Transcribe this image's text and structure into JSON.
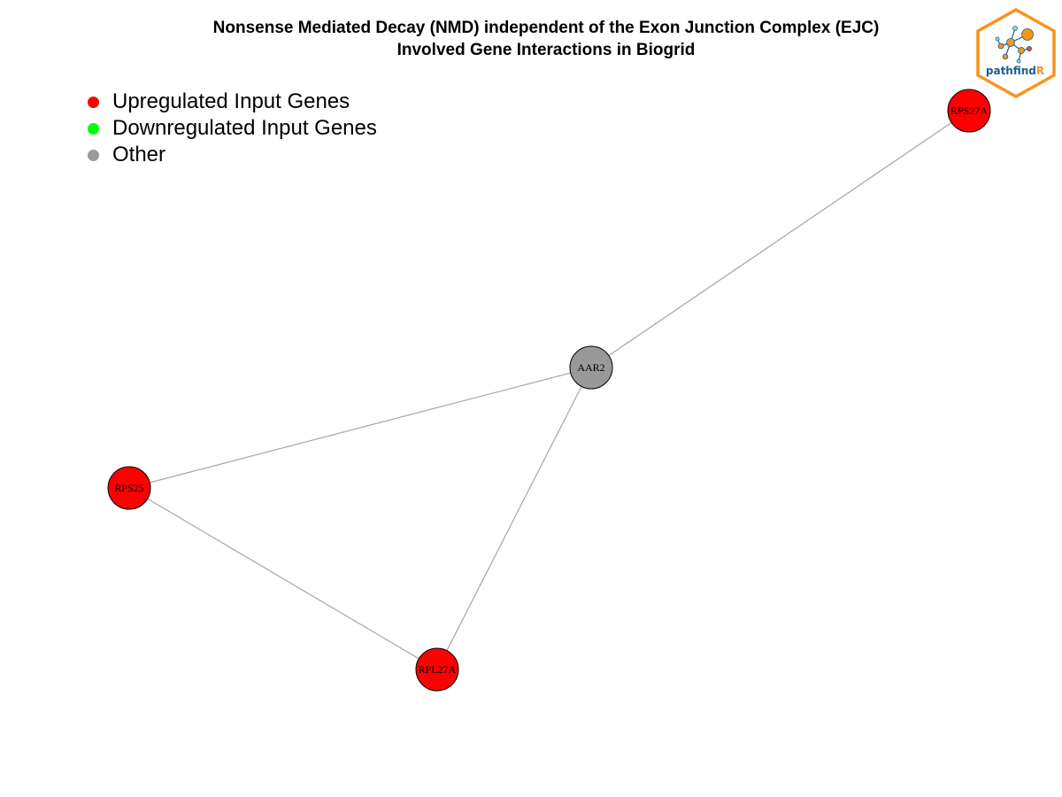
{
  "title": {
    "line1": "Nonsense Mediated Decay (NMD) independent of the Exon Junction Complex (EJC)",
    "line2": "Involved Gene Interactions in Biogrid"
  },
  "legend": [
    {
      "label": "Upregulated Input Genes",
      "color": "#ff0000"
    },
    {
      "label": "Downregulated Input Genes",
      "color": "#00ff00"
    },
    {
      "label": "Other",
      "color": "#999999"
    }
  ],
  "network": {
    "nodes": [
      {
        "id": "AAR2",
        "label": "AAR2",
        "category": "Other"
      },
      {
        "id": "RPS27A",
        "label": "RPS27A",
        "category": "Upregulated Input Genes"
      },
      {
        "id": "RPS25",
        "label": "RPS25",
        "category": "Upregulated Input Genes"
      },
      {
        "id": "RPL27A",
        "label": "RPL27A",
        "category": "Upregulated Input Genes"
      }
    ],
    "edges": [
      {
        "source": "AAR2",
        "target": "RPS27A"
      },
      {
        "source": "AAR2",
        "target": "RPS25"
      },
      {
        "source": "AAR2",
        "target": "RPL27A"
      },
      {
        "source": "RPS25",
        "target": "RPL27A"
      }
    ],
    "colors": {
      "upregulated": "#ff0000",
      "downregulated": "#00ff00",
      "other": "#999999",
      "edge": "#a6a6a6",
      "node_border": "#000000"
    }
  },
  "logo": {
    "text_main": "pathfind",
    "text_accent": "R",
    "border_color": "#f7941d",
    "text_color": "#1a5d8f",
    "accent_color": "#f7941d"
  }
}
